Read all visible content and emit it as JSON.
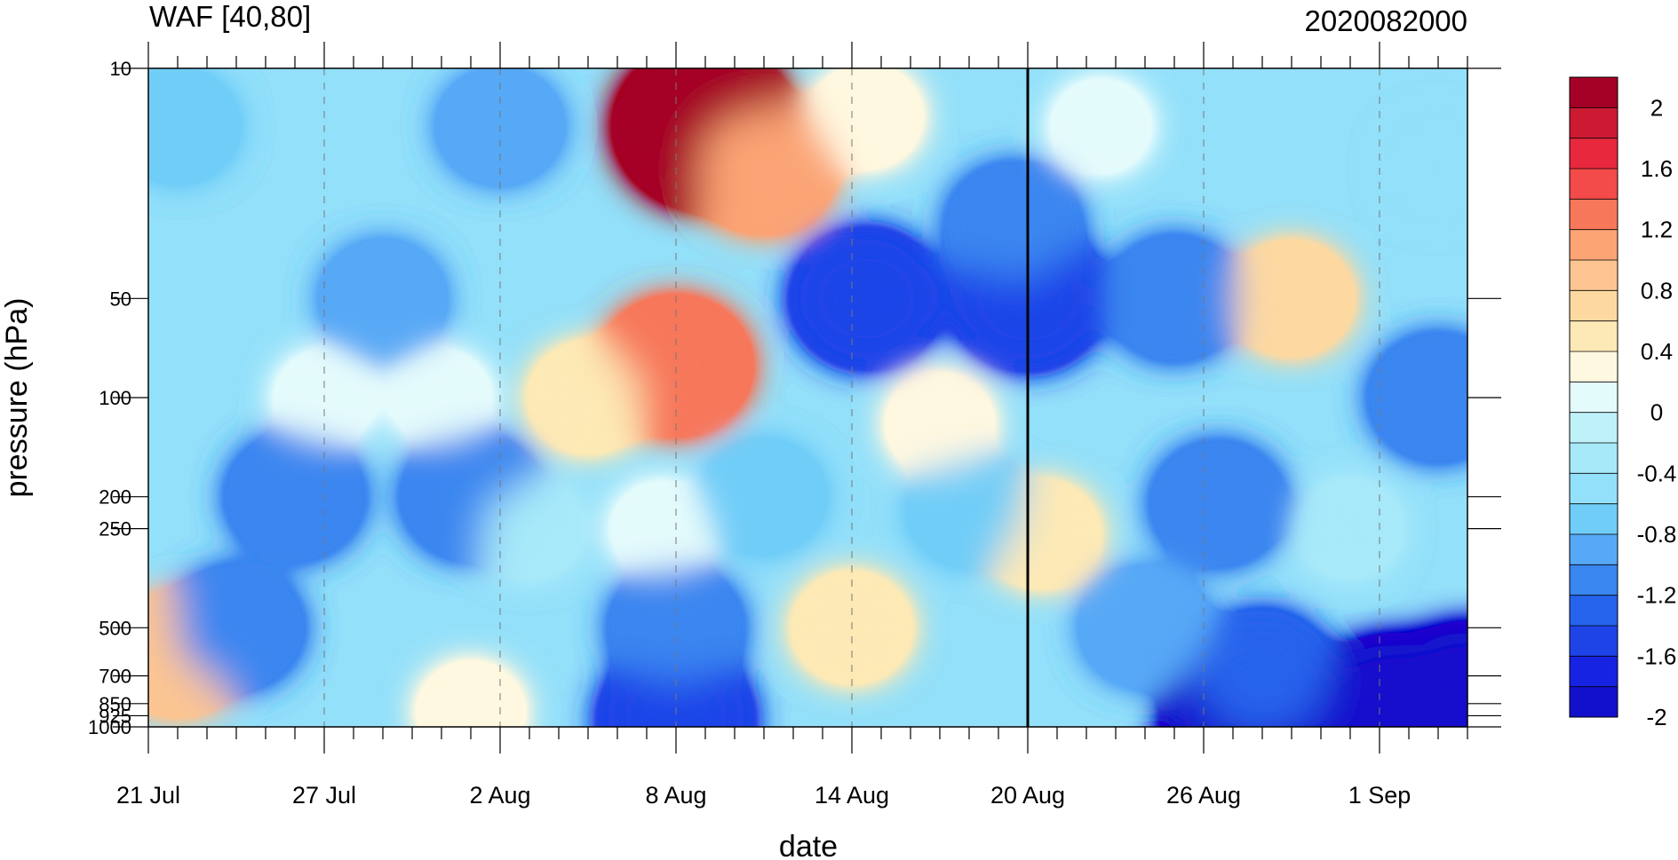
{
  "chart_data": {
    "type": "heatmap",
    "subtype": "filled-contour",
    "title_left": "WAF [40,80]",
    "title_right": "2020082000",
    "xlabel": "date",
    "ylabel": "pressure (hPa)",
    "x_start": "21 Jul",
    "x_end": "4 Sep",
    "x_ticks": [
      {
        "day": 0,
        "label": "21 Jul"
      },
      {
        "day": 6,
        "label": "27 Jul"
      },
      {
        "day": 12,
        "label": "2 Aug"
      },
      {
        "day": 18,
        "label": "8 Aug"
      },
      {
        "day": 24,
        "label": "14 Aug"
      },
      {
        "day": 30,
        "label": "20 Aug"
      },
      {
        "day": 36,
        "label": "26 Aug"
      },
      {
        "day": 42,
        "label": "1 Sep"
      }
    ],
    "x_range_days": [
      0,
      45
    ],
    "y_scale": "log",
    "y_range": [
      1000,
      10
    ],
    "y_ticks": [
      {
        "value": 10,
        "label": "10"
      },
      {
        "value": 50,
        "label": "50"
      },
      {
        "value": 100,
        "label": "100"
      },
      {
        "value": 200,
        "label": "200"
      },
      {
        "value": 250,
        "label": "250"
      },
      {
        "value": 500,
        "label": "500"
      },
      {
        "value": 700,
        "label": "700"
      },
      {
        "value": 850,
        "label": "850"
      },
      {
        "value": 925,
        "label": "925"
      },
      {
        "value": 1000,
        "label": "1000"
      }
    ],
    "forecast_start_day": 30,
    "colorbar": {
      "levels": [
        2.2,
        2.0,
        1.8,
        1.6,
        1.4,
        1.2,
        1.0,
        0.8,
        0.6,
        0.4,
        0.2,
        0.0,
        -0.2,
        -0.4,
        -0.6,
        -0.8,
        -1.0,
        -1.2,
        -1.4,
        -1.6,
        -1.8,
        -2.0,
        -2.2
      ],
      "colors": [
        "#a50026",
        "#cc1a33",
        "#e8283c",
        "#f34b4a",
        "#f7775a",
        "#fba474",
        "#fcc591",
        "#fdd9a1",
        "#fde9b5",
        "#fff8e0",
        "#e4fbfc",
        "#bff1f9",
        "#a7e9f9",
        "#93e0fa",
        "#70cdf8",
        "#56a9f6",
        "#3a86f0",
        "#2563ec",
        "#1e44e8",
        "#1624e2",
        "#1310cd"
      ],
      "labels": [
        "2",
        "1.6",
        "1.2",
        "0.8",
        "0.4",
        "0",
        "-0.4",
        "-0.8",
        "-1.2",
        "-1.6",
        "-2"
      ]
    },
    "features": [
      {
        "day": 19,
        "pressure": 15,
        "value": 2.2
      },
      {
        "day": 18,
        "pressure": 80,
        "value": 1.4
      },
      {
        "day": 21,
        "pressure": 20,
        "value": 1.2
      },
      {
        "day": 15,
        "pressure": 100,
        "value": 0.6
      },
      {
        "day": 24.5,
        "pressure": 14,
        "value": 0.4
      },
      {
        "day": 39,
        "pressure": 50,
        "value": 0.7
      },
      {
        "day": 24,
        "pressure": 500,
        "value": 0.6
      },
      {
        "day": 30.5,
        "pressure": 260,
        "value": 0.5
      },
      {
        "day": 27,
        "pressure": 120,
        "value": 0.3
      },
      {
        "day": 11,
        "pressure": 900,
        "value": 0.3
      },
      {
        "day": 1,
        "pressure": 600,
        "value": 1.0
      },
      {
        "day": 6,
        "pressure": 100,
        "value": 0.1
      },
      {
        "day": 10,
        "pressure": 100,
        "value": 0.1
      },
      {
        "day": 32.5,
        "pressure": 15,
        "value": 0.1
      },
      {
        "day": 17.5,
        "pressure": 250,
        "value": 0.1
      },
      {
        "day": 24.5,
        "pressure": 50,
        "value": -1.4
      },
      {
        "day": 30,
        "pressure": 50,
        "value": -1.5
      },
      {
        "day": 29.5,
        "pressure": 30,
        "value": -1.0
      },
      {
        "day": 18,
        "pressure": 950,
        "value": -1.5
      },
      {
        "day": 18,
        "pressure": 500,
        "value": -1.0
      },
      {
        "day": 42.5,
        "pressure": 950,
        "value": -2.2
      },
      {
        "day": 37.5,
        "pressure": 950,
        "value": -1.9
      },
      {
        "day": 38,
        "pressure": 700,
        "value": -1.2
      },
      {
        "day": 36.5,
        "pressure": 210,
        "value": -1.0
      },
      {
        "day": 44,
        "pressure": 100,
        "value": -1.1
      },
      {
        "day": 45,
        "pressure": 850,
        "value": -2.0
      },
      {
        "day": 5,
        "pressure": 200,
        "value": -1.1
      },
      {
        "day": 11,
        "pressure": 200,
        "value": -1.1
      },
      {
        "day": 8,
        "pressure": 50,
        "value": -0.8
      },
      {
        "day": 12,
        "pressure": 15,
        "value": -0.8
      },
      {
        "day": 1,
        "pressure": 15,
        "value": -0.7
      },
      {
        "day": 3,
        "pressure": 500,
        "value": -1.0
      },
      {
        "day": 35,
        "pressure": 50,
        "value": -1.0
      },
      {
        "day": 34,
        "pressure": 500,
        "value": -0.9
      },
      {
        "day": 41,
        "pressure": 250,
        "value": -0.2
      },
      {
        "day": 28,
        "pressure": 220,
        "value": -0.7
      },
      {
        "day": 21,
        "pressure": 200,
        "value": -0.7
      },
      {
        "day": 13,
        "pressure": 250,
        "value": -0.3
      },
      {
        "day": 44,
        "pressure": 20,
        "value": -0.4
      }
    ]
  }
}
